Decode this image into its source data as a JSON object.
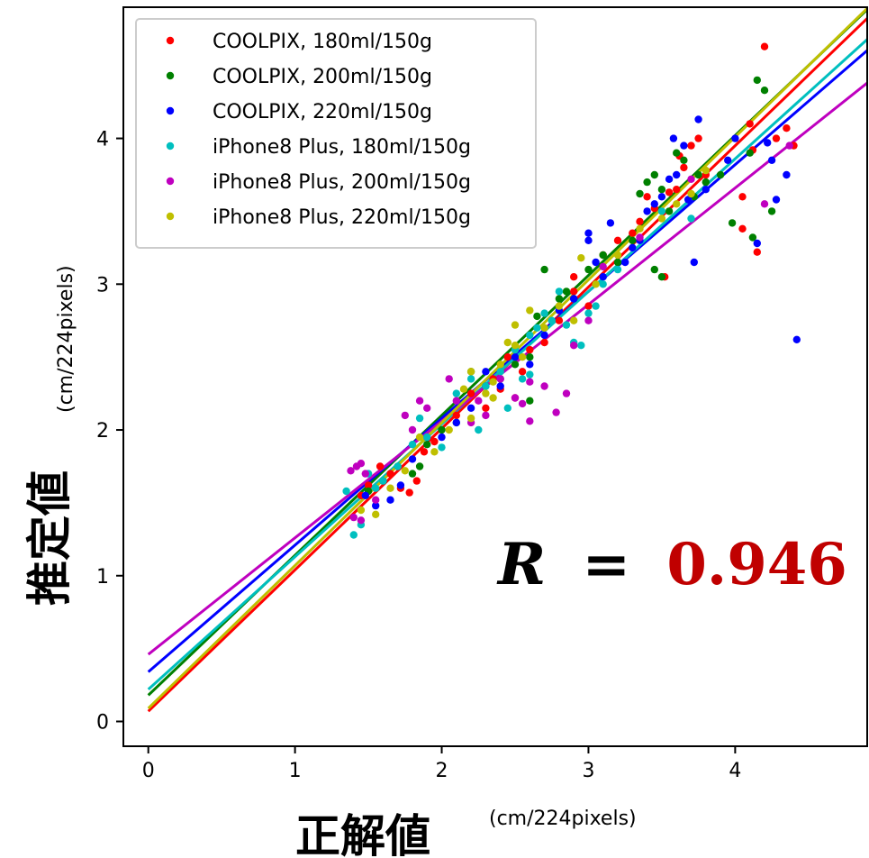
{
  "chart_data": {
    "type": "scatter",
    "xlabel": "正解値",
    "xlabel_unit": "(cm/224pixels)",
    "ylabel": "推定値",
    "ylabel_unit": "(cm/224pixels)",
    "xlim": [
      -0.17,
      4.9
    ],
    "ylim": [
      -0.17,
      4.9
    ],
    "x_ticks": [
      0,
      1,
      2,
      3,
      4
    ],
    "y_ticks": [
      0,
      1,
      2,
      3,
      4
    ],
    "x_tick_labels": [
      "0",
      "1",
      "2",
      "3",
      "4"
    ],
    "y_tick_labels": [
      "0",
      "1",
      "2",
      "3",
      "4"
    ],
    "grid": false,
    "legend_position": "top-left",
    "annotation": {
      "r_symbol": "R",
      "equals": "=",
      "value": "0.946",
      "value_color": "#c00000"
    },
    "series": [
      {
        "name": "COOLPIX, 180ml/150g",
        "color": "#ff0000",
        "fit": {
          "intercept": 0.07,
          "slope": 0.97
        },
        "points": [
          [
            1.45,
            1.55
          ],
          [
            1.5,
            1.62
          ],
          [
            1.58,
            1.75
          ],
          [
            1.65,
            1.7
          ],
          [
            1.72,
            1.6
          ],
          [
            1.78,
            1.57
          ],
          [
            1.83,
            1.65
          ],
          [
            1.88,
            1.85
          ],
          [
            1.95,
            1.92
          ],
          [
            2.1,
            2.1
          ],
          [
            2.2,
            2.25
          ],
          [
            2.3,
            2.15
          ],
          [
            2.35,
            2.35
          ],
          [
            2.4,
            2.28
          ],
          [
            2.45,
            2.5
          ],
          [
            2.5,
            2.22
          ],
          [
            2.55,
            2.4
          ],
          [
            2.6,
            2.55
          ],
          [
            2.7,
            2.6
          ],
          [
            2.8,
            2.75
          ],
          [
            2.9,
            2.95
          ],
          [
            2.9,
            3.05
          ],
          [
            3.0,
            2.85
          ],
          [
            3.1,
            3.2
          ],
          [
            3.2,
            3.3
          ],
          [
            3.3,
            3.35
          ],
          [
            3.35,
            3.43
          ],
          [
            3.4,
            3.6
          ],
          [
            3.45,
            3.52
          ],
          [
            3.55,
            3.63
          ],
          [
            3.6,
            3.65
          ],
          [
            3.62,
            3.88
          ],
          [
            3.65,
            3.8
          ],
          [
            3.7,
            3.95
          ],
          [
            3.75,
            4.0
          ],
          [
            3.8,
            3.75
          ],
          [
            3.52,
            3.05
          ],
          [
            4.05,
            3.6
          ],
          [
            4.1,
            4.1
          ],
          [
            4.05,
            3.38
          ],
          [
            4.15,
            3.22
          ],
          [
            4.2,
            4.63
          ],
          [
            4.28,
            4.0
          ],
          [
            4.35,
            4.07
          ],
          [
            4.4,
            3.95
          ],
          [
            4.12,
            3.92
          ]
        ]
      },
      {
        "name": "COOLPIX, 200ml/150g",
        "color": "#008000",
        "fit": {
          "intercept": 0.18,
          "slope": 0.96
        },
        "points": [
          [
            1.5,
            1.58
          ],
          [
            1.6,
            1.65
          ],
          [
            1.7,
            1.75
          ],
          [
            1.8,
            1.7
          ],
          [
            1.85,
            1.75
          ],
          [
            1.9,
            1.9
          ],
          [
            2.0,
            2.0
          ],
          [
            2.1,
            2.05
          ],
          [
            2.2,
            2.4
          ],
          [
            2.3,
            2.3
          ],
          [
            2.4,
            2.35
          ],
          [
            2.5,
            2.45
          ],
          [
            2.6,
            2.5
          ],
          [
            2.65,
            2.78
          ],
          [
            2.7,
            3.1
          ],
          [
            2.8,
            2.9
          ],
          [
            2.85,
            2.95
          ],
          [
            2.9,
            2.9
          ],
          [
            3.0,
            3.1
          ],
          [
            3.1,
            3.2
          ],
          [
            3.2,
            3.15
          ],
          [
            3.3,
            3.3
          ],
          [
            3.35,
            3.62
          ],
          [
            3.4,
            3.7
          ],
          [
            3.45,
            3.75
          ],
          [
            3.5,
            3.65
          ],
          [
            3.55,
            3.5
          ],
          [
            3.6,
            3.9
          ],
          [
            3.65,
            3.85
          ],
          [
            3.72,
            3.6
          ],
          [
            3.75,
            3.75
          ],
          [
            3.8,
            3.7
          ],
          [
            3.9,
            3.75
          ],
          [
            3.98,
            3.42
          ],
          [
            4.1,
            3.9
          ],
          [
            4.15,
            4.4
          ],
          [
            4.2,
            4.33
          ],
          [
            4.25,
            3.5
          ],
          [
            4.12,
            3.32
          ],
          [
            3.5,
            3.05
          ],
          [
            3.45,
            3.1
          ],
          [
            2.6,
            2.2
          ]
        ]
      },
      {
        "name": "COOLPIX, 220ml/150g",
        "color": "#0000ff",
        "fit": {
          "intercept": 0.34,
          "slope": 0.87
        },
        "points": [
          [
            1.48,
            1.55
          ],
          [
            1.55,
            1.48
          ],
          [
            1.65,
            1.52
          ],
          [
            1.72,
            1.62
          ],
          [
            1.8,
            1.8
          ],
          [
            1.9,
            1.95
          ],
          [
            2.0,
            1.95
          ],
          [
            2.1,
            2.05
          ],
          [
            2.2,
            2.15
          ],
          [
            2.3,
            2.4
          ],
          [
            2.4,
            2.3
          ],
          [
            2.5,
            2.5
          ],
          [
            2.6,
            2.45
          ],
          [
            2.7,
            2.65
          ],
          [
            2.8,
            2.82
          ],
          [
            2.9,
            2.9
          ],
          [
            3.0,
            3.3
          ],
          [
            3.0,
            3.35
          ],
          [
            3.05,
            3.15
          ],
          [
            3.1,
            3.05
          ],
          [
            3.15,
            3.42
          ],
          [
            3.25,
            3.15
          ],
          [
            3.3,
            3.25
          ],
          [
            3.35,
            3.3
          ],
          [
            3.4,
            3.5
          ],
          [
            3.45,
            3.55
          ],
          [
            3.5,
            3.6
          ],
          [
            3.55,
            3.72
          ],
          [
            3.6,
            3.75
          ],
          [
            3.58,
            4.0
          ],
          [
            3.65,
            3.95
          ],
          [
            3.68,
            3.58
          ],
          [
            3.72,
            3.15
          ],
          [
            3.75,
            4.13
          ],
          [
            3.8,
            3.65
          ],
          [
            3.95,
            3.85
          ],
          [
            4.0,
            4.0
          ],
          [
            4.15,
            3.28
          ],
          [
            4.22,
            3.97
          ],
          [
            4.25,
            3.85
          ],
          [
            4.28,
            3.58
          ],
          [
            4.35,
            3.75
          ],
          [
            4.42,
            2.62
          ]
        ]
      },
      {
        "name": "iPhone8 Plus, 180ml/150g",
        "color": "#00bfbf",
        "fit": {
          "intercept": 0.22,
          "slope": 0.91
        },
        "points": [
          [
            1.35,
            1.58
          ],
          [
            1.4,
            1.28
          ],
          [
            1.45,
            1.35
          ],
          [
            1.5,
            1.7
          ],
          [
            1.55,
            1.6
          ],
          [
            1.6,
            1.65
          ],
          [
            1.7,
            1.75
          ],
          [
            1.8,
            1.9
          ],
          [
            1.85,
            2.08
          ],
          [
            1.9,
            1.95
          ],
          [
            2.0,
            1.88
          ],
          [
            2.1,
            2.25
          ],
          [
            2.2,
            2.35
          ],
          [
            2.25,
            2.0
          ],
          [
            2.3,
            2.3
          ],
          [
            2.4,
            2.4
          ],
          [
            2.45,
            2.15
          ],
          [
            2.5,
            2.55
          ],
          [
            2.55,
            2.35
          ],
          [
            2.6,
            2.65
          ],
          [
            2.65,
            2.7
          ],
          [
            2.7,
            2.8
          ],
          [
            2.75,
            2.75
          ],
          [
            2.8,
            2.95
          ],
          [
            2.85,
            2.72
          ],
          [
            2.9,
            2.6
          ],
          [
            2.95,
            2.58
          ],
          [
            3.0,
            2.8
          ],
          [
            3.05,
            2.85
          ],
          [
            3.1,
            3.0
          ],
          [
            3.2,
            3.1
          ],
          [
            3.5,
            3.5
          ],
          [
            3.7,
            3.45
          ],
          [
            2.6,
            2.38
          ]
        ]
      },
      {
        "name": "iPhone8 Plus, 200ml/150g",
        "color": "#bf00bf",
        "fit": {
          "intercept": 0.46,
          "slope": 0.8
        },
        "points": [
          [
            1.38,
            1.72
          ],
          [
            1.42,
            1.75
          ],
          [
            1.45,
            1.77
          ],
          [
            1.48,
            1.7
          ],
          [
            1.55,
            1.52
          ],
          [
            1.4,
            1.4
          ],
          [
            1.45,
            1.38
          ],
          [
            1.75,
            2.1
          ],
          [
            1.8,
            2.0
          ],
          [
            1.85,
            2.2
          ],
          [
            1.9,
            2.15
          ],
          [
            2.05,
            2.35
          ],
          [
            2.1,
            2.2
          ],
          [
            2.2,
            2.05
          ],
          [
            2.25,
            2.2
          ],
          [
            2.3,
            2.1
          ],
          [
            2.4,
            2.35
          ],
          [
            2.5,
            2.22
          ],
          [
            2.55,
            2.18
          ],
          [
            2.6,
            2.06
          ],
          [
            2.6,
            2.33
          ],
          [
            2.7,
            2.3
          ],
          [
            2.78,
            2.12
          ],
          [
            2.85,
            2.25
          ],
          [
            2.9,
            2.58
          ],
          [
            3.0,
            2.75
          ],
          [
            3.1,
            3.12
          ],
          [
            3.35,
            3.32
          ],
          [
            3.7,
            3.72
          ],
          [
            4.37,
            3.95
          ],
          [
            4.2,
            3.55
          ]
        ]
      },
      {
        "name": "iPhone8 Plus, 220ml/150g",
        "color": "#bfbf00",
        "fit": {
          "intercept": 0.09,
          "slope": 0.98
        },
        "points": [
          [
            1.45,
            1.45
          ],
          [
            1.55,
            1.42
          ],
          [
            1.65,
            1.6
          ],
          [
            1.75,
            1.72
          ],
          [
            1.85,
            1.95
          ],
          [
            1.95,
            1.85
          ],
          [
            2.05,
            2.0
          ],
          [
            2.15,
            2.28
          ],
          [
            2.2,
            2.4
          ],
          [
            2.3,
            2.25
          ],
          [
            2.35,
            2.33
          ],
          [
            2.4,
            2.45
          ],
          [
            2.45,
            2.6
          ],
          [
            2.5,
            2.72
          ],
          [
            2.55,
            2.5
          ],
          [
            2.6,
            2.82
          ],
          [
            2.7,
            2.7
          ],
          [
            2.8,
            2.85
          ],
          [
            2.9,
            2.75
          ],
          [
            2.95,
            3.18
          ],
          [
            3.05,
            3.0
          ],
          [
            3.2,
            3.2
          ],
          [
            3.35,
            3.38
          ],
          [
            3.5,
            3.45
          ],
          [
            3.6,
            3.55
          ],
          [
            3.7,
            3.62
          ],
          [
            3.8,
            3.78
          ],
          [
            2.5,
            2.58
          ],
          [
            2.2,
            2.08
          ],
          [
            2.35,
            2.22
          ]
        ]
      }
    ]
  }
}
